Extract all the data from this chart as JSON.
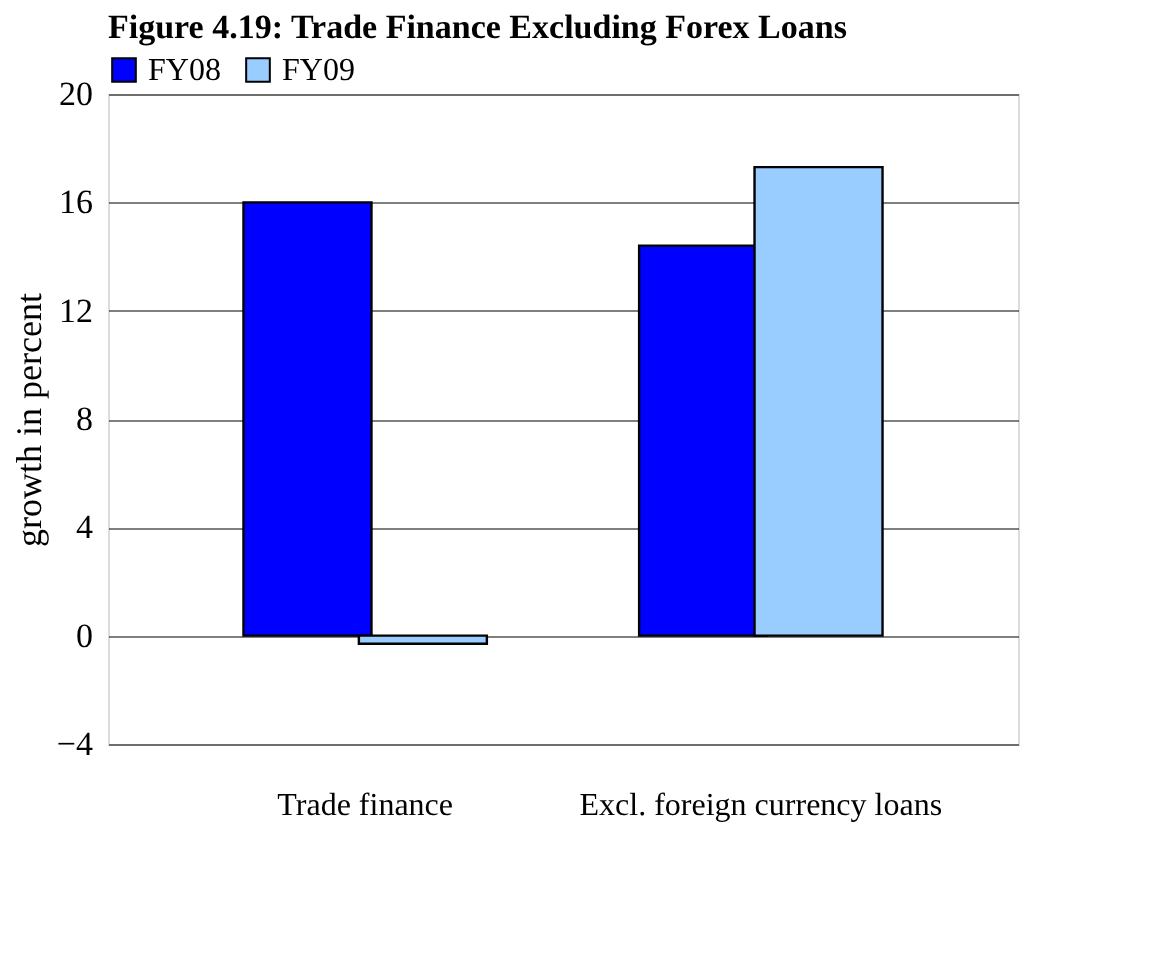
{
  "chart_data": {
    "type": "bar",
    "title": "Figure 4.19: Trade Finance Excluding Forex Loans",
    "ylabel": "growth in percent",
    "categories": [
      "Trade finance",
      "Excl. foreign currency loans"
    ],
    "series": [
      {
        "name": "FY08",
        "color": "#0000ff",
        "values": [
          16.0,
          14.4
        ]
      },
      {
        "name": "FY09",
        "color": "#99ccff",
        "values": [
          -0.3,
          17.3
        ]
      }
    ],
    "ylim": [
      -4,
      20
    ],
    "yticks": [
      -4,
      0,
      4,
      8,
      12,
      16,
      20
    ],
    "grid": "y",
    "legend": "top left"
  }
}
